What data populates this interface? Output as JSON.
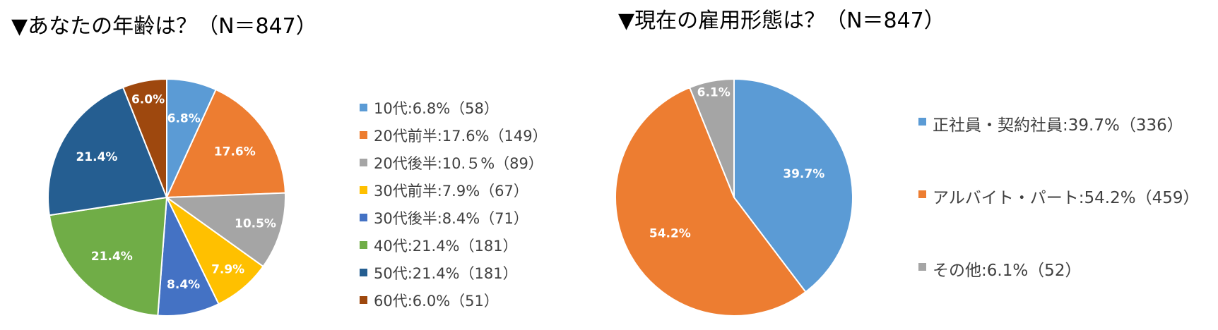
{
  "chart_data": [
    {
      "type": "pie",
      "title": "▼あなたの年齢は？（N＝847）",
      "categories": [
        "10代",
        "20代前半",
        "20代後半",
        "30代前半",
        "30代後半",
        "40代",
        "50代",
        "60代"
      ],
      "values": [
        6.8,
        17.6,
        10.5,
        7.9,
        8.4,
        21.4,
        21.4,
        6.0
      ],
      "counts": [
        58,
        149,
        89,
        67,
        71,
        181,
        181,
        51
      ],
      "data_labels": [
        "6.8%",
        "17.6%",
        "10.5%",
        "7.9%",
        "8.4%",
        "21.4%",
        "21.4%",
        "6.0%"
      ],
      "legend_labels": [
        "10代:6.8%（58）",
        "20代前半:17.6%（149）",
        "20代後半:10.５%（89）",
        "30代前半:7.9%（67）",
        "30代後半:8.4%（71）",
        "40代:21.4%（181）",
        "50代:21.4%（181）",
        "60代:6.0%（51）"
      ],
      "colors": [
        "#5b9bd5",
        "#ed7d31",
        "#a5a5a5",
        "#ffc000",
        "#4472c4",
        "#70ad47",
        "#255e91",
        "#9e480e"
      ],
      "legend_position": "right"
    },
    {
      "type": "pie",
      "title": "▼現在の雇用形態は？（N＝847）",
      "categories": [
        "正社員・契約社員",
        "アルバイト・パート",
        "その他"
      ],
      "values": [
        39.7,
        54.2,
        6.1
      ],
      "counts": [
        336,
        459,
        52
      ],
      "data_labels": [
        "39.7%",
        "54.2%",
        "6.1%"
      ],
      "legend_labels": [
        "正社員・契約社員:39.7%（336）",
        "アルバイト・パート:54.2%（459）",
        "その他:6.1%（52）"
      ],
      "colors": [
        "#5b9bd5",
        "#ed7d31",
        "#a5a5a5"
      ],
      "legend_position": "right"
    }
  ]
}
